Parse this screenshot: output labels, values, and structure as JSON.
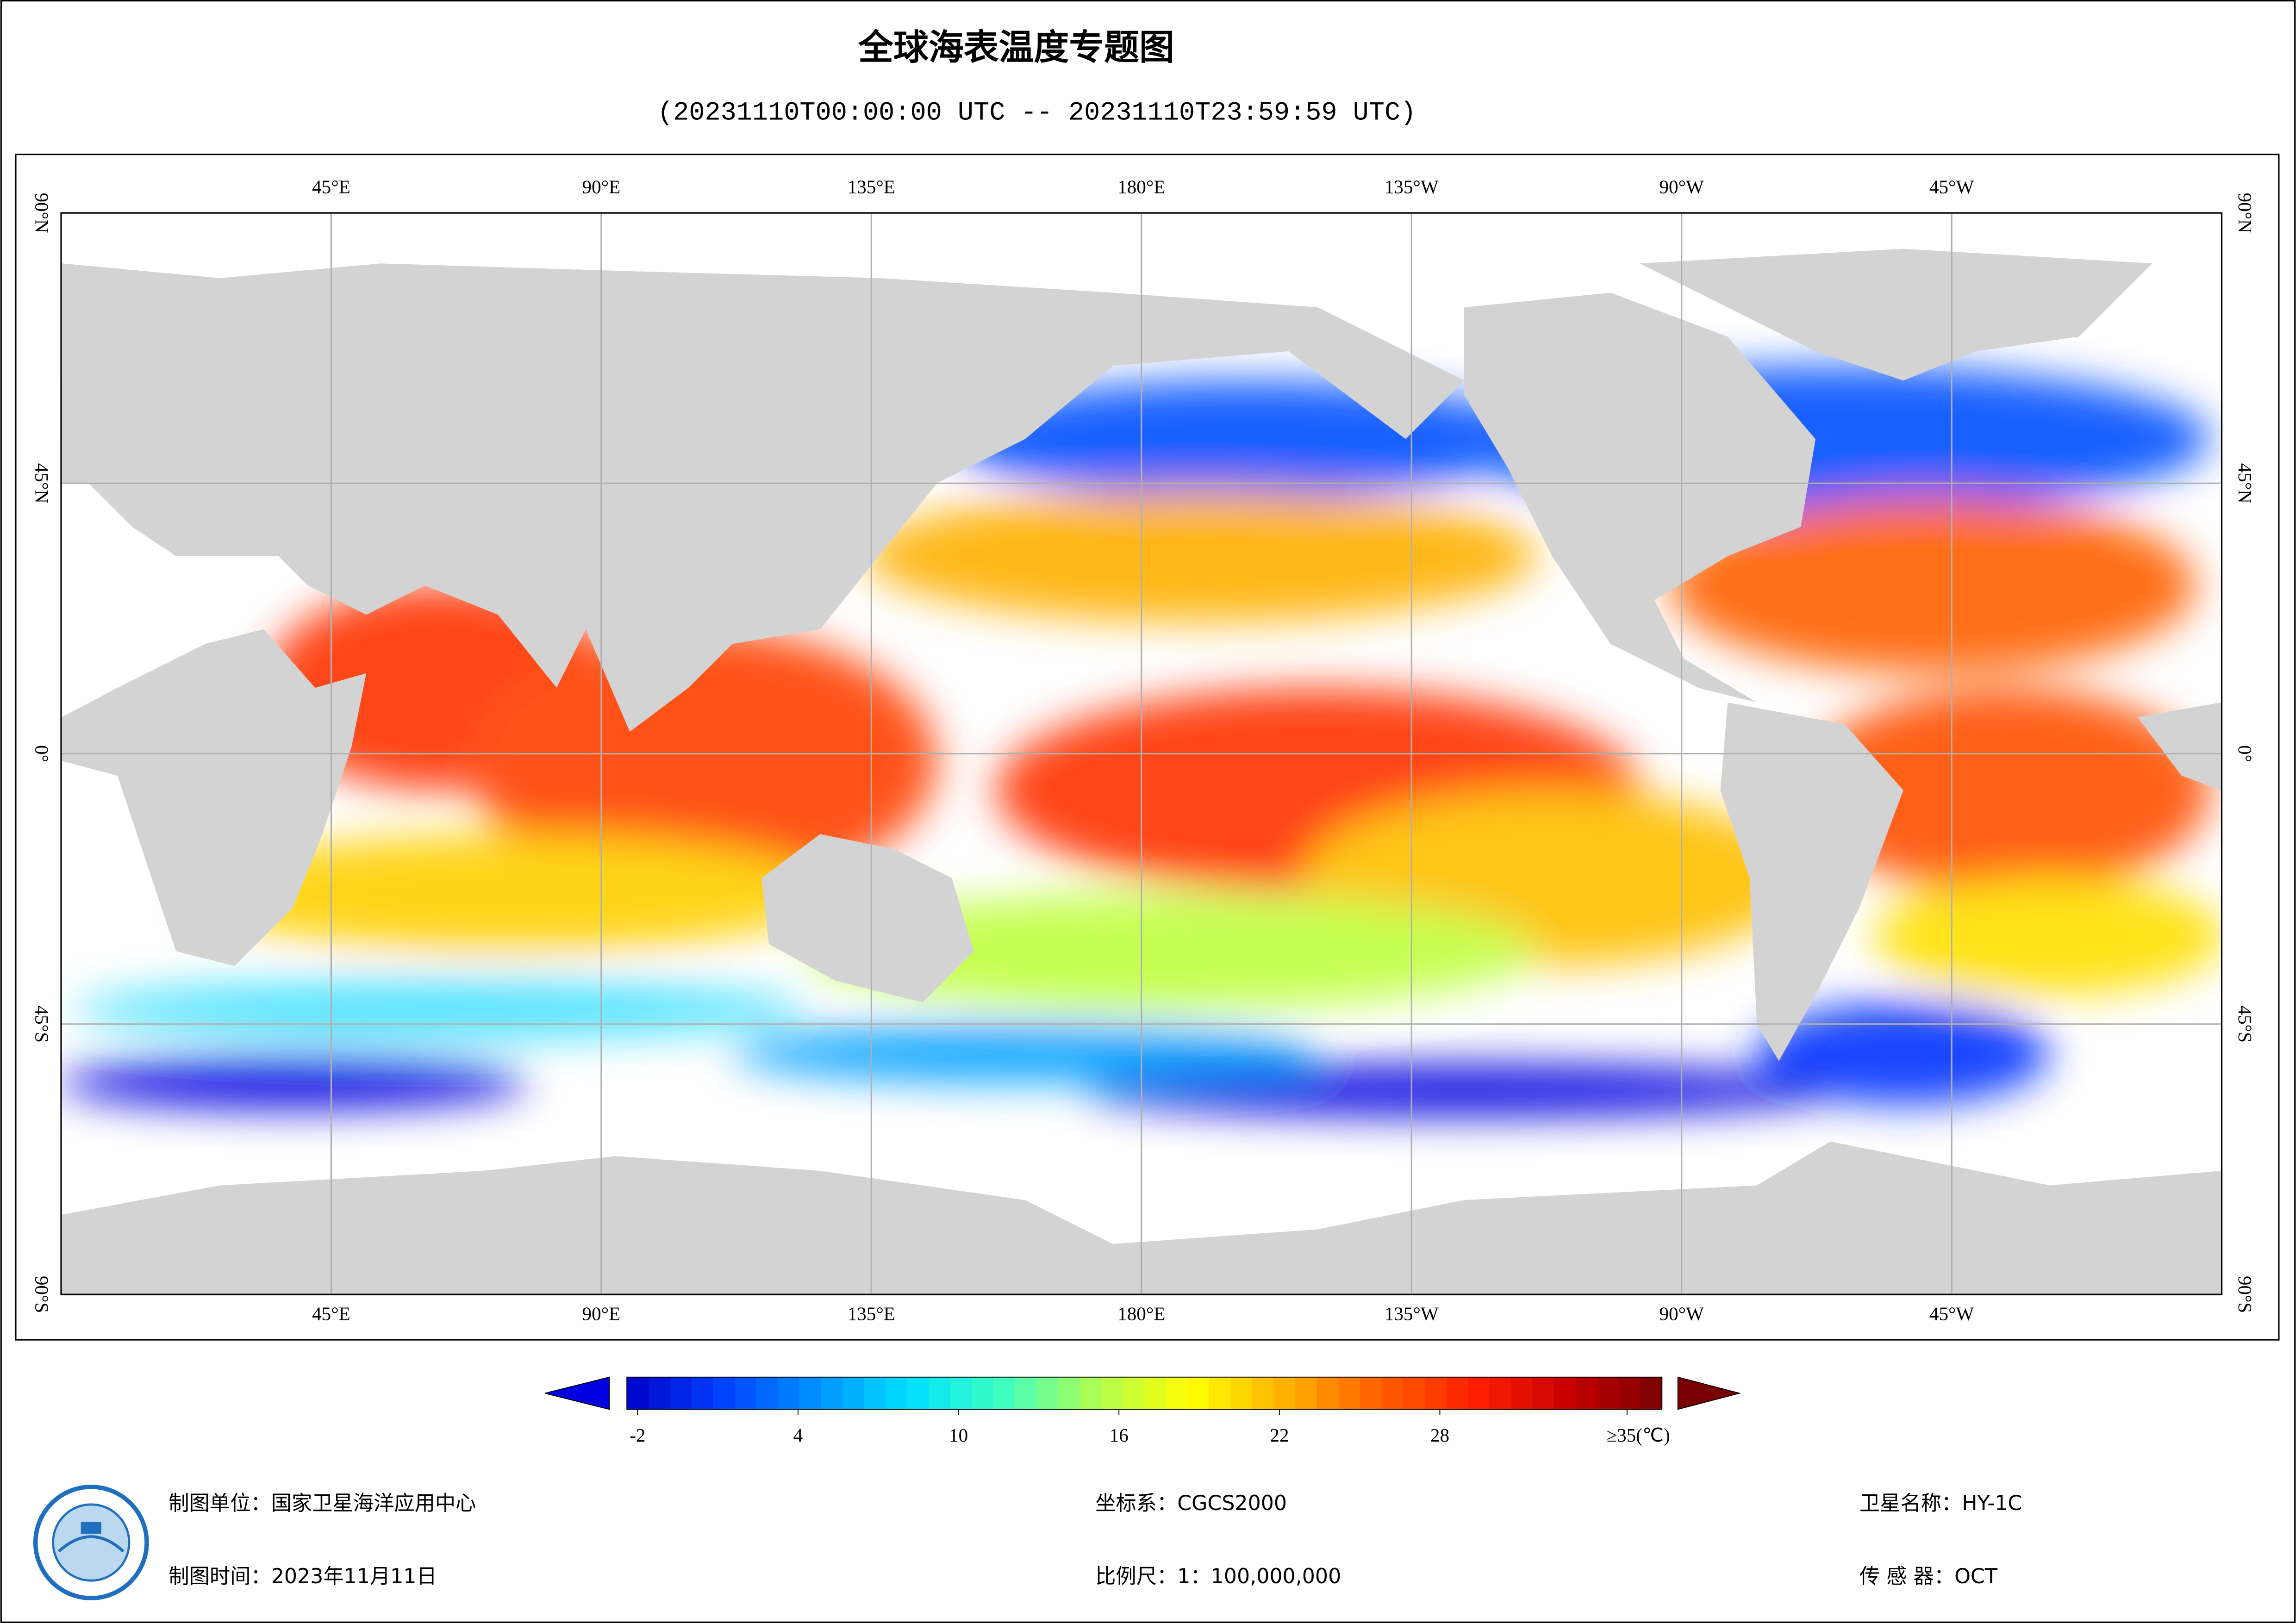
{
  "title": "全球海表温度专题图",
  "subtitle": "(20231110T00:00:00 UTC -- 20231110T23:59:59 UTC)",
  "map": {
    "lonlim": [
      0,
      360
    ],
    "latlim": [
      -90,
      90
    ],
    "lonticks": [
      {
        "value": 45,
        "label": "45°E"
      },
      {
        "value": 90,
        "label": "90°E"
      },
      {
        "value": 135,
        "label": "135°E"
      },
      {
        "value": 180,
        "label": "180°E"
      },
      {
        "value": 225,
        "label": "135°W"
      },
      {
        "value": 270,
        "label": "90°W"
      },
      {
        "value": 315,
        "label": "45°W"
      }
    ],
    "latticks": [
      {
        "value": 90,
        "label": "90°N"
      },
      {
        "value": 45,
        "label": "45°N"
      },
      {
        "value": 0,
        "label": "0°"
      },
      {
        "value": -45,
        "label": "45°S"
      },
      {
        "value": -90,
        "label": "90°S"
      }
    ],
    "grid": true
  },
  "colorbar": {
    "lim": [
      -2.4,
      36.3
    ],
    "ticks": [
      -2,
      4,
      10,
      16,
      22,
      28,
      {
        "value": 35,
        "label": "≥35(℃)"
      }
    ],
    "colors": [
      "#0000c8",
      "#0040ff",
      "#0090ff",
      "#00e0ff",
      "#40ffc0",
      "#b0ff50",
      "#ffff00",
      "#ffb000",
      "#ff6000",
      "#ff2000",
      "#c80000",
      "#780000"
    ]
  },
  "footer": {
    "producer": "制图单位：国家卫星海洋应用中心",
    "date": "制图时间：2023年11月11日",
    "crs": "坐标系：CGCS2000",
    "scale": "比例尺：1：100,000,000",
    "satellite": "卫星名称：HY-1C",
    "sensor": "传 感 器：OCT"
  }
}
